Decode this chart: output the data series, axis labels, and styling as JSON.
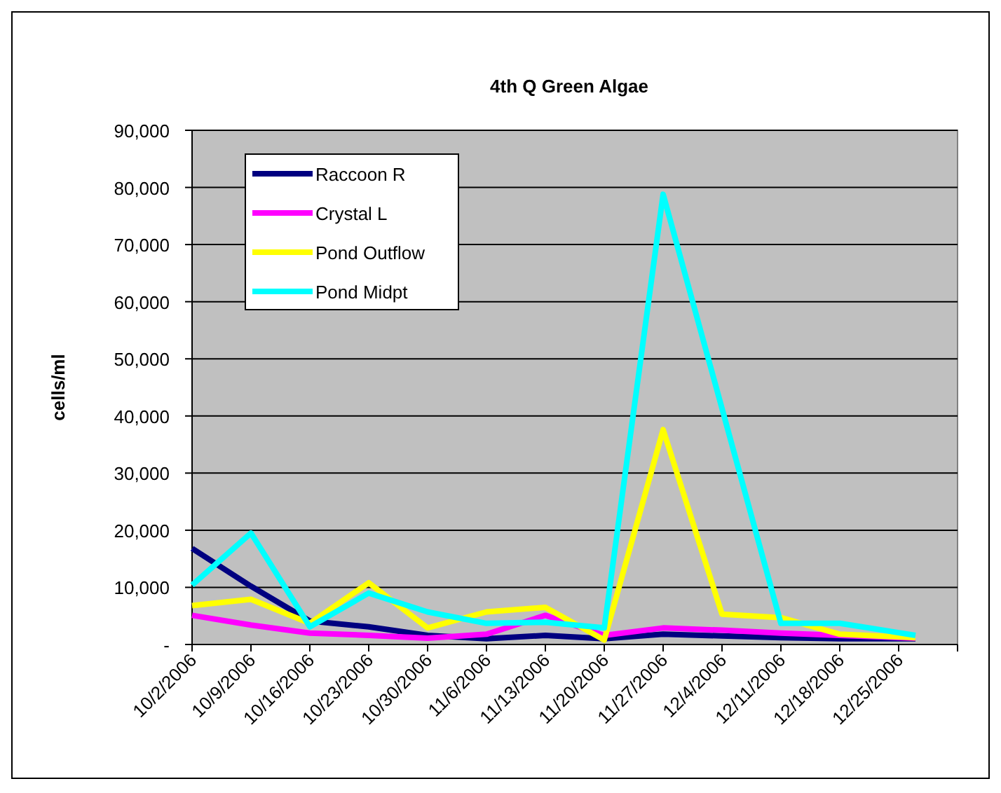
{
  "chart_data": {
    "type": "line",
    "title": "4th Q Green Algae",
    "ylabel": "cells/ml",
    "x": [
      "2006-10-02",
      "2006-10-09",
      "2006-10-16",
      "2006-10-23",
      "2006-10-30",
      "2006-11-06",
      "2006-11-13",
      "2006-11-20",
      "2006-11-27",
      "2006-12-04",
      "2006-12-11",
      "2006-12-18",
      "2006-12-27"
    ],
    "xlim": [
      "2006-10-02",
      "2007-01-01"
    ],
    "xticks": [
      {
        "value": "2006-10-02",
        "label": "10/2/2006"
      },
      {
        "value": "2006-10-09",
        "label": "10/9/2006"
      },
      {
        "value": "2006-10-16",
        "label": "10/16/2006"
      },
      {
        "value": "2006-10-23",
        "label": "10/23/2006"
      },
      {
        "value": "2006-10-30",
        "label": "10/30/2006"
      },
      {
        "value": "2006-11-06",
        "label": "11/6/2006"
      },
      {
        "value": "2006-11-13",
        "label": "11/13/2006"
      },
      {
        "value": "2006-11-20",
        "label": "11/20/2006"
      },
      {
        "value": "2006-11-27",
        "label": "11/27/2006"
      },
      {
        "value": "2006-12-04",
        "label": "12/4/2006"
      },
      {
        "value": "2006-12-11",
        "label": "12/11/2006"
      },
      {
        "value": "2006-12-18",
        "label": "12/18/2006"
      },
      {
        "value": "2006-12-25",
        "label": "12/25/2006"
      },
      {
        "value": "2007-01-01",
        "label": null
      }
    ],
    "ylim": [
      0,
      90000
    ],
    "yticks": [
      {
        "value": 0,
        "label": "-"
      },
      {
        "value": 10000,
        "label": "10,000"
      },
      {
        "value": 20000,
        "label": "20,000"
      },
      {
        "value": 30000,
        "label": "30,000"
      },
      {
        "value": 40000,
        "label": "40,000"
      },
      {
        "value": 50000,
        "label": "50,000"
      },
      {
        "value": 60000,
        "label": "60,000"
      },
      {
        "value": 70000,
        "label": "70,000"
      },
      {
        "value": 80000,
        "label": "80,000"
      },
      {
        "value": 90000,
        "label": "90,000"
      }
    ],
    "grid": "y",
    "legend": "top left",
    "marker": "none",
    "line_style": "solid",
    "series": [
      {
        "name": "Raccoon R",
        "color": "#000080",
        "values": [
          16800,
          10200,
          4100,
          3100,
          1600,
          1000,
          1600,
          1000,
          1800,
          1500,
          1200,
          1000,
          1000
        ]
      },
      {
        "name": "Crystal L",
        "color": "#ff00ff",
        "values": [
          5100,
          3400,
          2000,
          1600,
          1100,
          1800,
          5100,
          1600,
          2900,
          2500,
          2000,
          1600,
          1100
        ]
      },
      {
        "name": "Pond Outflow",
        "color": "#ffff00",
        "values": [
          6800,
          7900,
          3700,
          10800,
          2900,
          5700,
          6500,
          800,
          37600,
          5300,
          4700,
          1800,
          1200
        ]
      },
      {
        "name": "Pond Midpt",
        "color": "#00ffff",
        "values": [
          10400,
          19500,
          3100,
          9000,
          5700,
          3700,
          3900,
          2900,
          78800,
          41300,
          3700,
          3700,
          1600
        ]
      }
    ]
  }
}
